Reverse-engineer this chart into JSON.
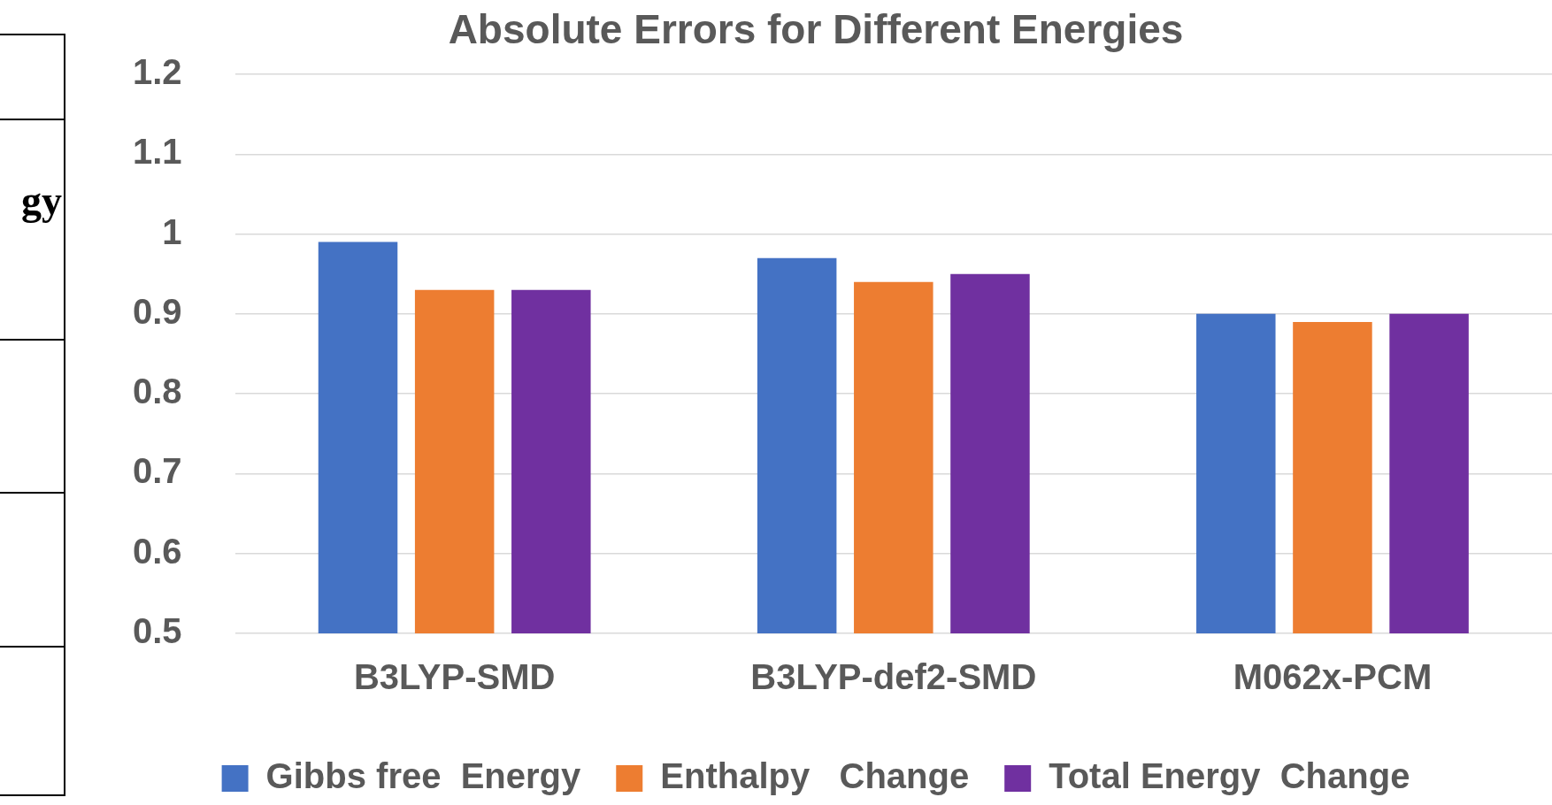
{
  "chart_data": {
    "type": "bar",
    "title": "Absolute Errors for Different Energies",
    "categories": [
      "B3LYP-SMD",
      "B3LYP-def2-SMD",
      "M062x-PCM"
    ],
    "series": [
      {
        "name": "Gibbs free  Energy",
        "color": "#4472c4",
        "values": [
          0.99,
          0.97,
          0.9
        ]
      },
      {
        "name": "Enthalpy   Change",
        "color": "#ed7d31",
        "values": [
          0.93,
          0.94,
          0.89
        ]
      },
      {
        "name": "Total Energy  Change",
        "color": "#7030a0",
        "values": [
          0.93,
          0.95,
          0.9
        ]
      }
    ],
    "ylim": [
      0.5,
      1.2
    ],
    "yticks": [
      0.5,
      0.6,
      0.7,
      0.8,
      0.9,
      1,
      1.1,
      1.2
    ],
    "grid": "y",
    "legend": "bottom",
    "annotations": [
      "gy"
    ]
  }
}
